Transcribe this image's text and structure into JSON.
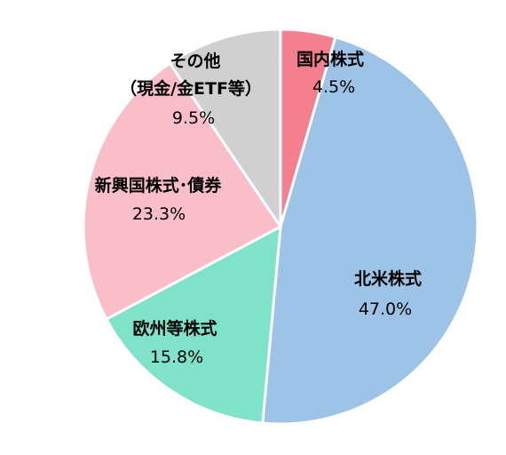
{
  "chart_data": {
    "type": "pie",
    "title": "",
    "slices": [
      {
        "label": "国内株式",
        "value": 4.5,
        "value_label": "4.5%",
        "color": "#f47f8e"
      },
      {
        "label": "北米株式",
        "value": 47.0,
        "value_label": "47.0%",
        "color": "#9dc3e6"
      },
      {
        "label": "欧州等株式",
        "value": 15.8,
        "value_label": "15.8%",
        "color": "#7ee3c8"
      },
      {
        "label": "新興国株式･債券",
        "value": 23.3,
        "value_label": "23.3%",
        "color": "#f9bec8"
      },
      {
        "label": "その他",
        "sublabel": "（現金/金ETF等）",
        "value": 9.5,
        "value_label": "9.5%",
        "color": "#d0d0d0"
      }
    ],
    "start_angle": "12 o'clock",
    "direction": "clockwise",
    "legend": "none (labels on slices)"
  }
}
